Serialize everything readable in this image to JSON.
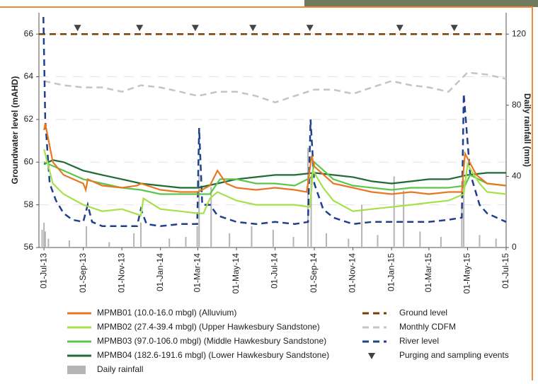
{
  "chart_data": {
    "type": "line",
    "y_label": "Groundwater level (mAHD)",
    "y2_label": "Daily rainfall (mm)",
    "xlim": [
      "2013-06-23",
      "2015-07-01"
    ],
    "ylim": [
      56,
      67
    ],
    "y2lim": [
      0,
      132
    ],
    "yticks": [
      56,
      58,
      60,
      62,
      64,
      66
    ],
    "y2ticks": [
      0,
      40,
      80,
      120
    ],
    "xticks": [
      {
        "value": "2013-07-01",
        "label": "01-Jul-13"
      },
      {
        "value": "2013-09-01",
        "label": "01-Sep-13"
      },
      {
        "value": "2013-11-01",
        "label": "01-Nov-13"
      },
      {
        "value": "2014-01-01",
        "label": "01-Jan-14"
      },
      {
        "value": "2014-03-01",
        "label": "01-Mar-14"
      },
      {
        "value": "2014-05-01",
        "label": "01-May-14"
      },
      {
        "value": "2014-07-01",
        "label": "01-Jul-14"
      },
      {
        "value": "2014-09-01",
        "label": "01-Sep-14"
      },
      {
        "value": "2014-11-01",
        "label": "01-Nov-14"
      },
      {
        "value": "2015-01-01",
        "label": "01-Jan-15"
      },
      {
        "value": "2015-03-01",
        "label": "01-Mar-15"
      },
      {
        "value": "2015-05-01",
        "label": "01-May-15"
      },
      {
        "value": "2015-07-01",
        "label": "01-Jul-15"
      }
    ],
    "grid": true,
    "series": [
      {
        "name": "MPMB01 (10.0-16.0 mbgl) (Alluvium)",
        "type": "line",
        "color": "#e87722",
        "line_style": "solid",
        "x": [
          "2013-07-01",
          "2013-07-03",
          "2013-07-15",
          "2013-08-01",
          "2013-09-01",
          "2013-09-05",
          "2013-09-08",
          "2013-10-01",
          "2013-11-01",
          "2013-11-25",
          "2013-12-01",
          "2014-01-01",
          "2014-02-01",
          "2014-03-01",
          "2014-03-20",
          "2014-04-01",
          "2014-04-15",
          "2014-05-01",
          "2014-06-01",
          "2014-07-01",
          "2014-08-01",
          "2014-08-20",
          "2014-08-28",
          "2014-09-01",
          "2014-10-01",
          "2014-11-01",
          "2014-12-01",
          "2015-01-01",
          "2015-02-01",
          "2015-03-01",
          "2015-04-01",
          "2015-04-22",
          "2015-04-27",
          "2015-05-15",
          "2015-06-01",
          "2015-07-01"
        ],
        "values": [
          61.5,
          61.8,
          60.0,
          59.4,
          59.0,
          58.7,
          59.2,
          58.9,
          58.8,
          58.9,
          59.0,
          58.7,
          58.6,
          58.6,
          58.9,
          59.6,
          59.0,
          58.8,
          58.7,
          58.8,
          58.7,
          58.6,
          60.3,
          59.8,
          59.0,
          58.8,
          58.6,
          58.5,
          58.6,
          58.5,
          58.6,
          58.6,
          60.4,
          59.4,
          59.0,
          58.9
        ]
      },
      {
        "name": "MPMB02 (27.4-39.4 mbgl) (Upper Hawkesbury Sandstone)",
        "type": "line",
        "color": "#a6e04a",
        "line_style": "solid",
        "x": [
          "2013-07-01",
          "2013-07-15",
          "2013-08-01",
          "2013-09-01",
          "2013-10-01",
          "2013-11-01",
          "2013-12-01",
          "2013-12-05",
          "2014-01-01",
          "2014-02-01",
          "2014-03-01",
          "2014-03-10",
          "2014-03-20",
          "2014-04-01",
          "2014-05-01",
          "2014-06-01",
          "2014-07-01",
          "2014-08-01",
          "2014-08-25",
          "2014-08-30",
          "2014-09-15",
          "2014-10-01",
          "2014-11-01",
          "2014-12-01",
          "2015-01-01",
          "2015-02-01",
          "2015-03-01",
          "2015-04-01",
          "2015-04-25",
          "2015-05-01",
          "2015-05-20",
          "2015-06-01",
          "2015-07-01"
        ],
        "values": [
          60.6,
          59.0,
          58.5,
          58.0,
          57.7,
          57.8,
          57.5,
          58.3,
          57.8,
          57.7,
          57.6,
          57.6,
          58.3,
          58.6,
          58.2,
          58.0,
          58.0,
          58.0,
          57.9,
          59.6,
          58.8,
          58.2,
          57.7,
          57.8,
          57.9,
          58.0,
          58.1,
          58.2,
          58.5,
          59.9,
          59.0,
          58.6,
          58.5
        ]
      },
      {
        "name": "MPMB03 (97.0-106.0 mbgl) (Middle Hawkesbury Sandstone)",
        "type": "line",
        "color": "#5cc64a",
        "line_style": "solid",
        "x": [
          "2013-07-01",
          "2013-08-01",
          "2013-09-01",
          "2013-10-01",
          "2013-11-01",
          "2013-12-01",
          "2014-01-01",
          "2014-02-01",
          "2014-03-01",
          "2014-03-20",
          "2014-04-05",
          "2014-05-01",
          "2014-06-01",
          "2014-07-01",
          "2014-08-01",
          "2014-08-28",
          "2014-09-01",
          "2014-10-01",
          "2014-11-01",
          "2014-12-01",
          "2015-01-01",
          "2015-02-01",
          "2015-03-01",
          "2015-04-01",
          "2015-04-27",
          "2015-05-05",
          "2015-06-01",
          "2015-07-01"
        ],
        "values": [
          60.0,
          59.6,
          59.2,
          59.0,
          58.8,
          58.7,
          58.5,
          58.5,
          58.5,
          58.5,
          59.2,
          59.2,
          59.0,
          59.0,
          58.9,
          59.3,
          60.0,
          59.2,
          58.9,
          58.8,
          58.7,
          58.8,
          58.8,
          58.8,
          58.9,
          59.4,
          59.0,
          58.9
        ]
      },
      {
        "name": "MPMB04 (182.6-191.6 mbgl) (Lower Hawkesbury Sandstone)",
        "type": "line",
        "color": "#1e6b35",
        "line_style": "solid",
        "x": [
          "2013-07-01",
          "2013-07-15",
          "2013-08-01",
          "2013-09-01",
          "2013-10-01",
          "2013-11-01",
          "2013-12-01",
          "2014-01-01",
          "2014-02-01",
          "2014-03-01",
          "2014-04-01",
          "2014-05-01",
          "2014-06-01",
          "2014-07-01",
          "2014-08-01",
          "2014-09-01",
          "2014-10-01",
          "2014-11-01",
          "2014-12-01",
          "2015-01-01",
          "2015-02-01",
          "2015-03-01",
          "2015-04-01",
          "2015-05-01",
          "2015-06-01",
          "2015-07-01"
        ],
        "values": [
          59.9,
          60.1,
          60.0,
          59.6,
          59.4,
          59.2,
          59.0,
          58.9,
          58.8,
          58.8,
          59.0,
          59.2,
          59.3,
          59.4,
          59.4,
          59.5,
          59.4,
          59.3,
          59.1,
          59.0,
          59.1,
          59.2,
          59.2,
          59.4,
          59.5,
          59.5
        ]
      },
      {
        "name": "Daily rainfall",
        "type": "bar",
        "axis": "y2",
        "color": "#b5b5b5",
        "x": [
          "2013-06-28",
          "2013-07-01",
          "2013-07-03",
          "2013-07-08",
          "2013-08-10",
          "2013-09-06",
          "2013-10-12",
          "2013-11-20",
          "2013-12-01",
          "2014-01-15",
          "2014-02-10",
          "2014-02-28",
          "2014-03-03",
          "2014-03-22",
          "2014-04-20",
          "2014-05-25",
          "2014-06-28",
          "2014-07-30",
          "2014-08-22",
          "2014-08-27",
          "2014-09-20",
          "2014-10-25",
          "2014-11-15",
          "2014-12-10",
          "2015-01-05",
          "2015-01-20",
          "2015-02-15",
          "2015-03-20",
          "2015-04-22",
          "2015-04-25",
          "2015-05-20",
          "2015-06-15"
        ],
        "values": [
          10,
          14,
          9,
          5,
          4,
          12,
          3,
          8,
          14,
          5,
          6,
          12,
          41,
          34,
          8,
          12,
          10,
          6,
          56,
          40,
          8,
          5,
          24,
          7,
          40,
          32,
          9,
          6,
          24,
          38,
          7,
          5
        ]
      },
      {
        "name": "Ground level",
        "type": "line",
        "color": "#7b3f00",
        "line_style": "dashed",
        "x": [
          "2013-06-23",
          "2015-07-01"
        ],
        "values": [
          66,
          66
        ]
      },
      {
        "name": "Monthly CDFM",
        "type": "line",
        "color": "#c4c4c4",
        "line_style": "dashed",
        "x": [
          "2013-07-01",
          "2013-08-01",
          "2013-09-01",
          "2013-10-01",
          "2013-11-01",
          "2013-12-01",
          "2014-01-01",
          "2014-02-01",
          "2014-03-01",
          "2014-04-01",
          "2014-05-01",
          "2014-06-01",
          "2014-07-01",
          "2014-08-01",
          "2014-09-01",
          "2014-10-01",
          "2014-11-01",
          "2014-12-01",
          "2015-01-01",
          "2015-02-01",
          "2015-03-01",
          "2015-04-01",
          "2015-05-01",
          "2015-06-01",
          "2015-07-01"
        ],
        "values": [
          63.8,
          63.6,
          63.5,
          63.5,
          63.3,
          63.6,
          63.5,
          63.3,
          63.1,
          63.3,
          63.3,
          63.1,
          62.8,
          63.1,
          63.4,
          63.4,
          63.2,
          63.5,
          63.8,
          63.6,
          63.5,
          63.3,
          64.2,
          64.1,
          63.9
        ]
      },
      {
        "name": "River level",
        "type": "line",
        "color": "#1f3f8f",
        "line_style": "dashed",
        "x": [
          "2013-06-30",
          "2013-07-03",
          "2013-07-10",
          "2013-07-20",
          "2013-08-01",
          "2013-08-15",
          "2013-09-01",
          "2013-09-08",
          "2013-09-15",
          "2013-10-01",
          "2013-11-01",
          "2013-11-25",
          "2013-12-01",
          "2013-12-10",
          "2014-01-01",
          "2014-02-01",
          "2014-02-28",
          "2014-03-03",
          "2014-03-08",
          "2014-03-20",
          "2014-04-01",
          "2014-05-01",
          "2014-06-01",
          "2014-07-01",
          "2014-08-01",
          "2014-08-22",
          "2014-08-26",
          "2014-09-01",
          "2014-09-15",
          "2014-10-01",
          "2014-11-01",
          "2014-12-01",
          "2015-01-01",
          "2015-02-01",
          "2015-03-01",
          "2015-04-01",
          "2015-04-22",
          "2015-04-25",
          "2015-05-05",
          "2015-05-20",
          "2015-06-01",
          "2015-07-01"
        ],
        "values": [
          66.8,
          62.0,
          59.0,
          58.2,
          57.6,
          57.3,
          57.2,
          58.0,
          57.2,
          57.0,
          57.0,
          57.0,
          57.8,
          57.1,
          57.0,
          57.1,
          57.1,
          61.6,
          58.0,
          58.0,
          57.5,
          57.2,
          57.1,
          57.2,
          57.1,
          57.2,
          62.0,
          59.0,
          57.8,
          57.4,
          57.1,
          57.2,
          57.2,
          57.2,
          57.2,
          57.3,
          57.4,
          63.2,
          59.5,
          58.0,
          57.6,
          57.2
        ]
      },
      {
        "name": "Purging and sampling events",
        "type": "marker",
        "color": "#444444",
        "x": [
          "2013-08-23",
          "2013-11-29",
          "2014-02-25",
          "2014-05-27",
          "2014-08-25",
          "2015-01-14",
          "2015-04-10"
        ],
        "values": [
          66.3,
          66.3,
          66.3,
          66.3,
          66.3,
          66.3,
          66.3
        ]
      }
    ]
  }
}
